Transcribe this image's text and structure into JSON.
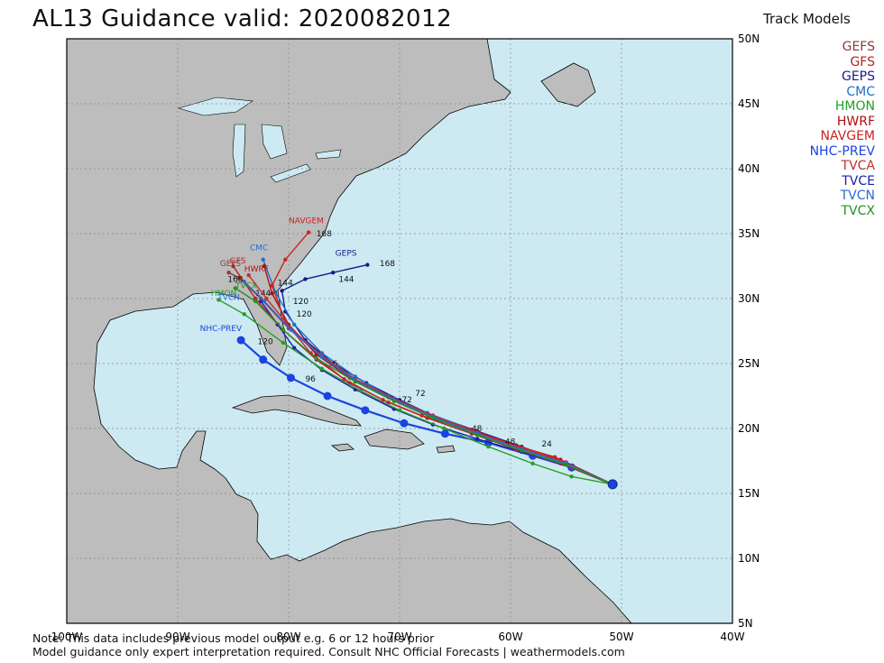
{
  "title": "AL13  Guidance valid: 2020082012",
  "legend": {
    "heading": "Track Models",
    "entries": [
      {
        "label": "GEFS",
        "color": "#8b3a3a"
      },
      {
        "label": "GFS",
        "color": "#b22222"
      },
      {
        "label": "GEPS",
        "color": "#1a1a8c"
      },
      {
        "label": "CMC",
        "color": "#1e6fd0"
      },
      {
        "label": "HMON",
        "color": "#22a022"
      },
      {
        "label": "HWRF",
        "color": "#aa1111"
      },
      {
        "label": "NAVGEM",
        "color": "#cc2222"
      },
      {
        "label": "NHC-PREV",
        "color": "#1a44e0"
      },
      {
        "label": "TVCA",
        "color": "#c03030"
      },
      {
        "label": "TVCE",
        "color": "#1d1daa"
      },
      {
        "label": "TVCN",
        "color": "#2a6ad8"
      },
      {
        "label": "TVCX",
        "color": "#239023"
      }
    ]
  },
  "axes": {
    "lon_labels": [
      "100W",
      "90W",
      "80W",
      "70W",
      "60W",
      "50W",
      "40W"
    ],
    "lat_labels": [
      "50N",
      "45N",
      "40N",
      "35N",
      "30N",
      "25N",
      "20N",
      "15N",
      "10N",
      "5N"
    ]
  },
  "map_extent": {
    "lon": [
      -100,
      -40
    ],
    "lat": [
      5,
      50
    ]
  },
  "colors": {
    "ocean": "#cdeaf3",
    "land": "#bdbdbd",
    "border": "#000000",
    "grid": "#888888",
    "lakes": "#cdeaf3"
  },
  "storm_start": {
    "lon": -50.8,
    "lat": 15.7
  },
  "tracks": [
    {
      "model": "NHC-PREV",
      "color": "#1a44e0",
      "big_dots": true,
      "pts": [
        [
          -50.8,
          15.7
        ],
        [
          -54.5,
          17.0
        ],
        [
          -58,
          17.9
        ],
        [
          -62,
          18.9
        ],
        [
          -65.9,
          19.6
        ],
        [
          -69.6,
          20.4
        ],
        [
          -73.1,
          21.4
        ],
        [
          -76.5,
          22.5
        ],
        [
          -79.8,
          23.9
        ],
        [
          -82.3,
          25.3
        ],
        [
          -84.3,
          26.8
        ]
      ],
      "labels": [
        [
          48,
          -63.5,
          19.8
        ],
        [
          96,
          -78.5,
          23.6
        ],
        [
          120,
          -82.8,
          26.5
        ]
      ]
    },
    {
      "model": "TVCE",
      "color": "#1d1daa",
      "big_dots": false,
      "pts": [
        [
          -50.8,
          15.7
        ],
        [
          -55,
          17.2
        ],
        [
          -59,
          18.2
        ],
        [
          -63,
          19.2
        ],
        [
          -67,
          20.3
        ],
        [
          -70.5,
          21.5
        ],
        [
          -74,
          23.0
        ],
        [
          -77,
          24.5
        ],
        [
          -79.5,
          26.2
        ],
        [
          -81,
          28.0
        ],
        [
          -82.5,
          29.8
        ]
      ],
      "labels": [
        [
          72,
          -69.8,
          22.0
        ]
      ]
    },
    {
      "model": "GEFS",
      "color": "#8b3a3a",
      "big_dots": false,
      "pts": [
        [
          -50.8,
          15.7
        ],
        [
          -55,
          17.4
        ],
        [
          -59,
          18.5
        ],
        [
          -63,
          19.6
        ],
        [
          -67,
          20.9
        ],
        [
          -70.5,
          22.2
        ],
        [
          -74,
          23.8
        ],
        [
          -77,
          25.5
        ],
        [
          -80,
          27.7
        ],
        [
          -82.5,
          30.0
        ],
        [
          -84.5,
          31.6
        ],
        [
          -85.4,
          32.0
        ]
      ],
      "labels": [
        [
          168,
          -85.5,
          31.3
        ]
      ]
    },
    {
      "model": "GFS",
      "color": "#b22222",
      "big_dots": false,
      "pts": [
        [
          -50.8,
          15.7
        ],
        [
          -55.5,
          17.3
        ],
        [
          -59.5,
          18.4
        ],
        [
          -63.5,
          19.6
        ],
        [
          -67.5,
          20.8
        ],
        [
          -71,
          22.0
        ],
        [
          -74.5,
          23.5
        ],
        [
          -77.5,
          25.3
        ],
        [
          -80.5,
          27.6
        ],
        [
          -83,
          30.0
        ],
        [
          -85,
          32.5
        ]
      ],
      "labels": [
        [
          144,
          -83.0,
          30.2
        ]
      ]
    },
    {
      "model": "GEPS",
      "color": "#1a1a8c",
      "big_dots": false,
      "pts": [
        [
          -50.8,
          15.7
        ],
        [
          -55,
          17.3
        ],
        [
          -59,
          18.6
        ],
        [
          -63,
          19.8
        ],
        [
          -67,
          21.0
        ],
        [
          -70,
          22.2
        ],
        [
          -73,
          23.5
        ],
        [
          -76,
          25.0
        ],
        [
          -78.5,
          26.8
        ],
        [
          -80.3,
          29.0
        ],
        [
          -80.6,
          30.6
        ],
        [
          -78.5,
          31.5
        ],
        [
          -76,
          32.0
        ],
        [
          -72.9,
          32.6
        ]
      ],
      "labels": [
        [
          120,
          -79.6,
          29.6
        ],
        [
          144,
          -75.5,
          31.3
        ],
        [
          168,
          -71.8,
          32.5
        ]
      ]
    },
    {
      "model": "CMC",
      "color": "#1e6fd0",
      "big_dots": false,
      "pts": [
        [
          -50.8,
          15.7
        ],
        [
          -55.5,
          17.5
        ],
        [
          -59.5,
          18.7
        ],
        [
          -63.5,
          19.9
        ],
        [
          -67.5,
          21.2
        ],
        [
          -71,
          22.5
        ],
        [
          -74,
          24.0
        ],
        [
          -77,
          25.8
        ],
        [
          -79.5,
          28.0
        ],
        [
          -81.2,
          30.5
        ],
        [
          -82.3,
          33.0
        ]
      ],
      "labels": [
        [
          144,
          -81.0,
          31.0
        ]
      ]
    },
    {
      "model": "HMON",
      "color": "#22a022",
      "big_dots": false,
      "pts": [
        [
          -50.8,
          15.7
        ],
        [
          -54.5,
          16.3
        ],
        [
          -58,
          17.3
        ],
        [
          -62,
          18.6
        ],
        [
          -66,
          20.0
        ],
        [
          -70,
          21.4
        ],
        [
          -73.5,
          22.9
        ],
        [
          -77,
          24.6
        ],
        [
          -80.5,
          26.6
        ],
        [
          -84,
          28.8
        ],
        [
          -86.3,
          29.9
        ]
      ],
      "labels": [
        [
          96,
          -76.5,
          24.8
        ]
      ]
    },
    {
      "model": "HWRF",
      "color": "#aa1111",
      "big_dots": false,
      "pts": [
        [
          -50.8,
          15.7
        ],
        [
          -55.5,
          17.6
        ],
        [
          -59.5,
          18.7
        ],
        [
          -63.5,
          19.9
        ],
        [
          -67.5,
          21.1
        ],
        [
          -71,
          22.4
        ],
        [
          -74.5,
          23.9
        ],
        [
          -77.5,
          25.7
        ],
        [
          -80,
          28.0
        ],
        [
          -81.5,
          30.4
        ],
        [
          -82.2,
          32.5
        ]
      ],
      "labels": [
        [
          120,
          -79.3,
          28.6
        ]
      ]
    },
    {
      "model": "NAVGEM",
      "color": "#cc2222",
      "big_dots": false,
      "pts": [
        [
          -50.8,
          15.7
        ],
        [
          -56,
          17.8
        ],
        [
          -60,
          18.8
        ],
        [
          -64,
          19.9
        ],
        [
          -68,
          21.0
        ],
        [
          -71.5,
          22.2
        ],
        [
          -75,
          23.8
        ],
        [
          -78,
          25.8
        ],
        [
          -80.3,
          28.2
        ],
        [
          -81.5,
          31.0
        ],
        [
          -80.3,
          33.0
        ],
        [
          -78.2,
          35.1
        ]
      ],
      "labels": [
        [
          168,
          -77.5,
          34.8
        ]
      ]
    },
    {
      "model": "TVCA",
      "color": "#c03030",
      "big_dots": false,
      "pts": [
        [
          -50.8,
          15.7
        ],
        [
          -55,
          17.4
        ],
        [
          -59,
          18.5
        ],
        [
          -63,
          19.7
        ],
        [
          -67,
          21.0
        ],
        [
          -70.5,
          22.3
        ],
        [
          -74,
          23.8
        ],
        [
          -77,
          25.6
        ],
        [
          -79.8,
          27.7
        ],
        [
          -82,
          30.0
        ],
        [
          -83.6,
          31.8
        ]
      ],
      "labels": [
        [
          24,
          -57.2,
          18.6
        ]
      ]
    },
    {
      "model": "TVCN",
      "color": "#2a6ad8",
      "big_dots": false,
      "pts": [
        [
          -50.8,
          15.7
        ],
        [
          -55,
          17.3
        ],
        [
          -59,
          18.4
        ],
        [
          -63,
          19.6
        ],
        [
          -67,
          20.9
        ],
        [
          -70.5,
          22.2
        ],
        [
          -74,
          23.7
        ],
        [
          -77,
          25.5
        ],
        [
          -79.8,
          27.6
        ],
        [
          -82.2,
          29.8
        ],
        [
          -84,
          31.3
        ]
      ],
      "labels": [
        [
          72,
          -68.6,
          22.5
        ]
      ]
    },
    {
      "model": "TVCX",
      "color": "#239023",
      "big_dots": false,
      "pts": [
        [
          -50.8,
          15.7
        ],
        [
          -55,
          17.2
        ],
        [
          -59,
          18.3
        ],
        [
          -63,
          19.5
        ],
        [
          -67,
          20.8
        ],
        [
          -70.5,
          22.1
        ],
        [
          -74,
          23.6
        ],
        [
          -77.5,
          25.4
        ],
        [
          -80.5,
          27.6
        ],
        [
          -83,
          29.8
        ],
        [
          -84.8,
          30.8
        ]
      ],
      "labels": [
        [
          48,
          -60.5,
          18.8
        ]
      ]
    }
  ],
  "track_name_labels": [
    {
      "text": "NAVGEM",
      "lon": -80.0,
      "lat": 35.8,
      "color": "#cc2222"
    },
    {
      "text": "GEPS",
      "lon": -75.8,
      "lat": 33.3,
      "color": "#1a1a8c"
    },
    {
      "text": "CMC",
      "lon": -83.5,
      "lat": 33.7,
      "color": "#1e6fd0"
    },
    {
      "text": "GEFS",
      "lon": -86.2,
      "lat": 32.5,
      "color": "#8b3a3a"
    },
    {
      "text": "GFS",
      "lon": -85.3,
      "lat": 32.7,
      "color": "#b22222"
    },
    {
      "text": "HWRF",
      "lon": -84.0,
      "lat": 32.1,
      "color": "#aa1111"
    },
    {
      "text": "TVCX",
      "lon": -84.8,
      "lat": 30.8,
      "color": "#239023"
    },
    {
      "text": "HMON",
      "lon": -87.0,
      "lat": 30.2,
      "color": "#22a022"
    },
    {
      "text": "TVCN",
      "lon": -86.4,
      "lat": 29.9,
      "color": "#2a6ad8"
    },
    {
      "text": "NHC-PREV",
      "lon": -88.0,
      "lat": 27.5,
      "color": "#1a44e0"
    }
  ],
  "notes": [
    "Note: This data includes previous model output e.g. 6 or 12 hours prior",
    "Model guidance only expert interpretation required. Consult NHC Official Forecasts | weathermodels.com"
  ]
}
